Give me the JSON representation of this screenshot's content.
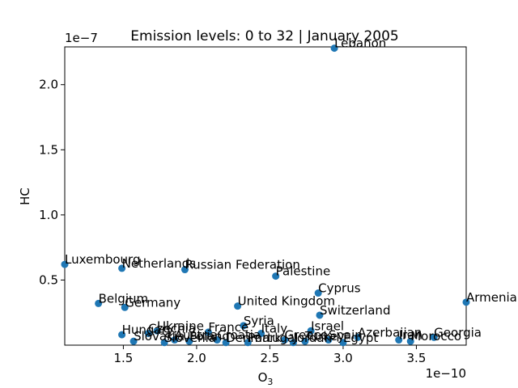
{
  "chart_data": {
    "type": "scatter",
    "title": "Emission levels: 0 to 32 | January 2005",
    "xlabel": "O",
    "xlabel_sub": "3",
    "ylabel": "HC",
    "x_multiplier": "1e−10",
    "y_multiplier": "1e−7",
    "x_ticks": [
      1.5,
      2.0,
      2.5,
      3.0,
      3.5
    ],
    "x_tick_labels": [
      "1.5",
      "2.0",
      "2.5",
      "3.0",
      "3.5"
    ],
    "y_ticks": [
      0.5,
      1.0,
      1.5,
      2.0
    ],
    "y_tick_labels": [
      "0.5",
      "1.0",
      "1.5",
      "2.0"
    ],
    "xlim": [
      1.1,
      3.84
    ],
    "ylim": [
      0.0,
      2.29
    ],
    "grid": false,
    "point_color": "#1f77b4",
    "points": [
      {
        "label": "Lebanon",
        "x": 2.94,
        "y": 2.28
      },
      {
        "label": "Luxembourg",
        "x": 1.1,
        "y": 0.62
      },
      {
        "label": "Netherlands",
        "x": 1.49,
        "y": 0.59
      },
      {
        "label": "Russian Federation",
        "x": 1.92,
        "y": 0.58
      },
      {
        "label": "Palestine",
        "x": 2.54,
        "y": 0.53
      },
      {
        "label": "Cyprus",
        "x": 2.83,
        "y": 0.4
      },
      {
        "label": "Armenia",
        "x": 3.84,
        "y": 0.33
      },
      {
        "label": "Belgium",
        "x": 1.33,
        "y": 0.32
      },
      {
        "label": "Germany",
        "x": 1.51,
        "y": 0.29
      },
      {
        "label": "United Kingdom",
        "x": 2.28,
        "y": 0.3
      },
      {
        "label": "Switzerland",
        "x": 2.84,
        "y": 0.23
      },
      {
        "label": "Syria",
        "x": 2.32,
        "y": 0.15
      },
      {
        "label": "Ukraine",
        "x": 1.73,
        "y": 0.11
      },
      {
        "label": "France",
        "x": 2.08,
        "y": 0.1
      },
      {
        "label": "Israel",
        "x": 2.78,
        "y": 0.11
      },
      {
        "label": "Czechia",
        "x": 1.67,
        "y": 0.09
      },
      {
        "label": "Hungary",
        "x": 1.49,
        "y": 0.08
      },
      {
        "label": "Italy",
        "x": 2.44,
        "y": 0.09
      },
      {
        "label": "Georgia",
        "x": 3.62,
        "y": 0.06
      },
      {
        "label": "Azerbaijan",
        "x": 3.1,
        "y": 0.06
      },
      {
        "label": "Iran",
        "x": 3.38,
        "y": 0.04
      },
      {
        "label": "Morocco",
        "x": 3.46,
        "y": 0.03
      },
      {
        "label": "Slovakia",
        "x": 1.57,
        "y": 0.03
      },
      {
        "label": "Greece",
        "x": 2.6,
        "y": 0.04
      },
      {
        "label": "Spain",
        "x": 2.9,
        "y": 0.04
      },
      {
        "label": "Egypt",
        "x": 3.0,
        "y": 0.02
      },
      {
        "label": "Austria",
        "x": 1.85,
        "y": 0.04
      },
      {
        "label": "Poland",
        "x": 1.95,
        "y": 0.03
      },
      {
        "label": "Croatia",
        "x": 2.14,
        "y": 0.04
      },
      {
        "label": "Slovenia",
        "x": 1.78,
        "y": 0.02
      },
      {
        "label": "Denmark",
        "x": 2.2,
        "y": 0.02
      },
      {
        "label": "Portugal",
        "x": 2.35,
        "y": 0.02
      },
      {
        "label": "Jordan",
        "x": 2.66,
        "y": 0.02
      },
      {
        "label": "Turkey",
        "x": 2.74,
        "y": 0.03
      }
    ]
  }
}
